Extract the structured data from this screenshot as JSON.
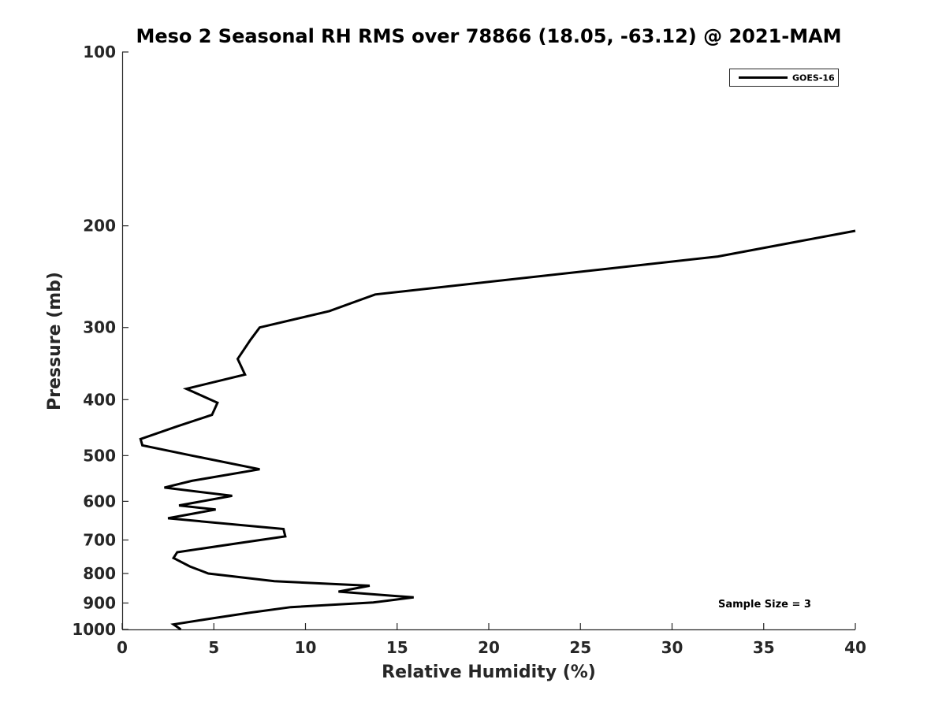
{
  "chart_data": {
    "type": "line",
    "title": "Meso 2 Seasonal RH RMS over 78866 (18.05, -63.12) @ 2021-MAM",
    "xlabel": "Relative Humidity (%)",
    "ylabel": "Pressure (mb)",
    "xlim": [
      0,
      40
    ],
    "ylim": [
      100,
      1000
    ],
    "y_scale": "log",
    "y_reversed": true,
    "x_ticks": [
      0,
      5,
      10,
      15,
      20,
      25,
      30,
      35,
      40
    ],
    "x_tick_labels": [
      "0",
      "5",
      "10",
      "15",
      "20",
      "25",
      "30",
      "35",
      "40"
    ],
    "y_ticks": [
      100,
      200,
      300,
      400,
      500,
      600,
      700,
      800,
      900,
      1000
    ],
    "y_tick_labels": [
      "100",
      "200",
      "300",
      "400",
      "500",
      "600",
      "700",
      "800",
      "900",
      "1000"
    ],
    "grid": false,
    "legend": {
      "position": "top-right",
      "entries": [
        "GOES-16"
      ]
    },
    "annotations": [
      "Sample Size = 3"
    ],
    "series": [
      {
        "name": "GOES-16",
        "color": "#000000",
        "points": [
          [
            40.0,
            204
          ],
          [
            32.5,
            226
          ],
          [
            13.8,
            263
          ],
          [
            11.3,
            281
          ],
          [
            7.5,
            300
          ],
          [
            7.0,
            315
          ],
          [
            6.3,
            340
          ],
          [
            6.7,
            362
          ],
          [
            3.5,
            383
          ],
          [
            5.2,
            405
          ],
          [
            4.9,
            425
          ],
          [
            3.0,
            445
          ],
          [
            1.0,
            468
          ],
          [
            1.1,
            480
          ],
          [
            3.8,
            500
          ],
          [
            7.5,
            528
          ],
          [
            3.8,
            553
          ],
          [
            2.3,
            568
          ],
          [
            6.0,
            587
          ],
          [
            3.1,
            610
          ],
          [
            5.1,
            620
          ],
          [
            2.5,
            642
          ],
          [
            8.8,
            670
          ],
          [
            8.9,
            690
          ],
          [
            6.2,
            710
          ],
          [
            3.0,
            735
          ],
          [
            2.8,
            752
          ],
          [
            3.7,
            778
          ],
          [
            4.7,
            800
          ],
          [
            8.3,
            825
          ],
          [
            13.5,
            840
          ],
          [
            11.8,
            860
          ],
          [
            15.9,
            880
          ],
          [
            13.7,
            898
          ],
          [
            9.2,
            915
          ],
          [
            7.0,
            935
          ],
          [
            4.9,
            957
          ],
          [
            2.8,
            980
          ],
          [
            3.2,
            1000
          ]
        ]
      }
    ]
  }
}
